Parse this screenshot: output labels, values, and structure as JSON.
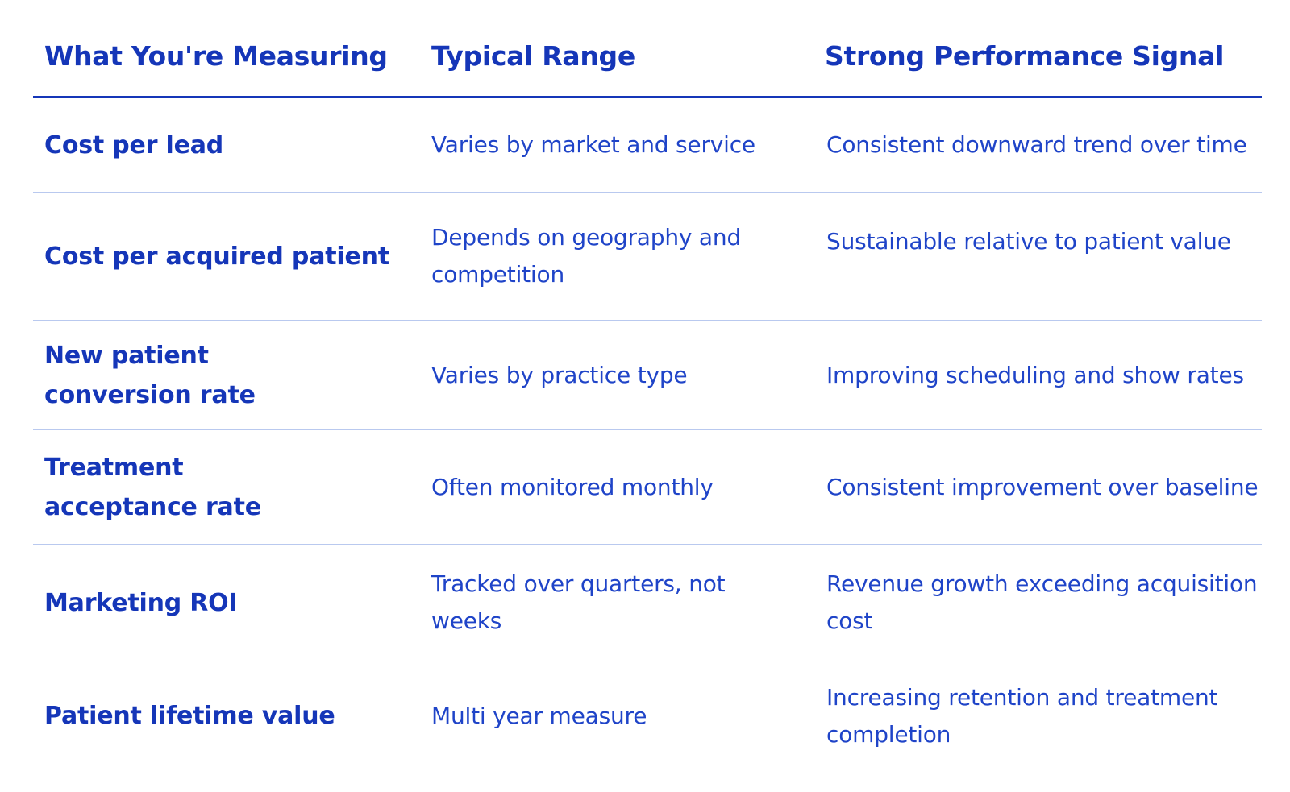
{
  "table": {
    "headers": [
      "What You're Measuring",
      "Typical Range",
      "Strong Performance Signal"
    ],
    "rows": [
      {
        "metric": "Cost per lead",
        "range": "Varies by market and service",
        "signal": "Consistent downward trend over time"
      },
      {
        "metric": "Cost per acquired patient",
        "range": "Depends on geography and competition",
        "signal": "Sustainable relative to patient value"
      },
      {
        "metric": "New patient conversion rate",
        "range": "Varies by practice type",
        "signal": "Improving scheduling and show rates"
      },
      {
        "metric": "Treatment acceptance rate",
        "range": "Often monitored monthly",
        "signal": "Consistent improvement over baseline"
      },
      {
        "metric": "Marketing ROI",
        "range": "Tracked over quarters, not weeks",
        "signal": "Revenue growth exceeding acquisition cost"
      },
      {
        "metric": "Patient lifetime value",
        "range": "Multi year measure",
        "signal": "Increasing retention and treatment completion"
      }
    ]
  },
  "colors": {
    "text": "#1536b8",
    "header_rule": "#1536b8",
    "row_rule": "#b9c9ef",
    "background": "#ffffff"
  }
}
